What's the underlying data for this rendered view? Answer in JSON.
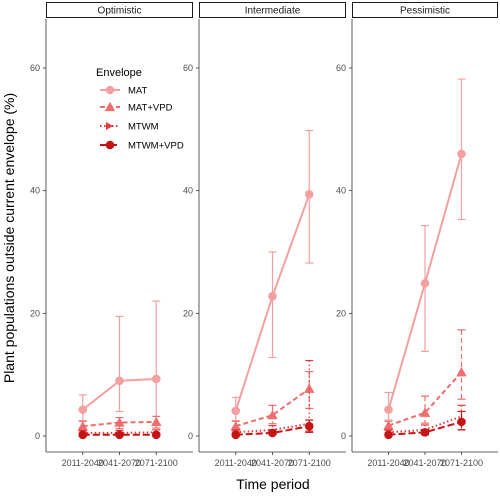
{
  "chart_data": {
    "type": "line",
    "xlabel": "Time period",
    "ylabel": "Plant populations outside current envelope (%)",
    "ylim": [
      0,
      66
    ],
    "yticks": [
      0,
      20,
      40,
      60
    ],
    "categories": [
      "2011-2040",
      "2041-2070",
      "2071-2100"
    ],
    "grid": false,
    "legend": {
      "title": "Envelope",
      "placement": "top-left",
      "entries": [
        "MAT",
        "MAT+VPD",
        "MTWM",
        "MTWM+VPD"
      ]
    },
    "series_styles": [
      {
        "name": "MAT",
        "color": "#f4a0a0",
        "marker": "circle",
        "dash": "solid"
      },
      {
        "name": "MAT+VPD",
        "color": "#ee6e6e",
        "marker": "triangle",
        "dash": "dashed"
      },
      {
        "name": "MTWM",
        "color": "#e03a3a",
        "marker": "none",
        "dash": "dotted"
      },
      {
        "name": "MTWM+VPD",
        "color": "#c41414",
        "marker": "circle",
        "dash": "longdash"
      }
    ],
    "panels": [
      {
        "title": "Optimistic",
        "series": [
          {
            "name": "MAT",
            "values": [
              4.3,
              9.0,
              9.3
            ],
            "lower": [
              2.5,
              4.0,
              2.0
            ],
            "upper": [
              6.7,
              19.5,
              22.0
            ]
          },
          {
            "name": "MAT+VPD",
            "values": [
              1.6,
              2.2,
              2.3
            ],
            "lower": [
              0.8,
              1.2,
              1.3
            ],
            "upper": [
              2.4,
              3.0,
              3.2
            ]
          },
          {
            "name": "MTWM",
            "values": [
              0.5,
              0.5,
              0.6
            ],
            "lower": [
              0.2,
              0.2,
              0.2
            ],
            "upper": [
              0.9,
              0.9,
              1.0
            ]
          },
          {
            "name": "MTWM+VPD",
            "values": [
              0.2,
              0.2,
              0.2
            ],
            "lower": [
              0.0,
              0.0,
              0.0
            ],
            "upper": [
              0.5,
              0.5,
              0.5
            ]
          }
        ]
      },
      {
        "title": "Intermediate",
        "series": [
          {
            "name": "MAT",
            "values": [
              4.1,
              22.8,
              39.4
            ],
            "lower": [
              2.5,
              12.8,
              28.2
            ],
            "upper": [
              6.3,
              30.0,
              49.8
            ]
          },
          {
            "name": "MAT+VPD",
            "values": [
              1.6,
              3.4,
              7.7
            ],
            "lower": [
              0.8,
              2.0,
              4.5
            ],
            "upper": [
              2.4,
              5.0,
              10.5
            ]
          },
          {
            "name": "MTWM",
            "values": [
              0.6,
              1.0,
              2.0
            ],
            "lower": [
              0.2,
              0.5,
              0.8
            ],
            "upper": [
              1.0,
              1.7,
              12.3
            ]
          },
          {
            "name": "MTWM+VPD",
            "values": [
              0.2,
              0.5,
              1.6
            ],
            "lower": [
              0.0,
              0.2,
              0.6
            ],
            "upper": [
              0.5,
              1.0,
              2.6
            ]
          }
        ]
      },
      {
        "title": "Pessimistic",
        "series": [
          {
            "name": "MAT",
            "values": [
              4.3,
              24.9,
              46.0
            ],
            "lower": [
              2.6,
              13.8,
              35.3
            ],
            "upper": [
              7.1,
              34.3,
              58.2
            ]
          },
          {
            "name": "MAT+VPD",
            "values": [
              1.7,
              3.8,
              10.4
            ],
            "lower": [
              0.9,
              2.1,
              6.0
            ],
            "upper": [
              2.4,
              6.5,
              17.3
            ]
          },
          {
            "name": "MTWM",
            "values": [
              0.6,
              1.0,
              3.2
            ],
            "lower": [
              0.2,
              0.5,
              1.0
            ],
            "upper": [
              1.0,
              1.8,
              5.0
            ]
          },
          {
            "name": "MTWM+VPD",
            "values": [
              0.2,
              0.6,
              2.3
            ],
            "lower": [
              0.0,
              0.2,
              1.0
            ],
            "upper": [
              0.5,
              1.0,
              4.0
            ]
          }
        ]
      }
    ]
  }
}
